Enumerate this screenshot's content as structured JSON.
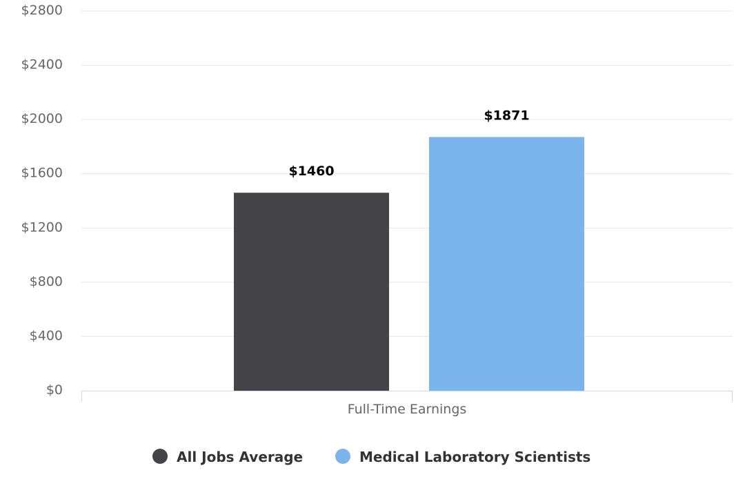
{
  "chart_data": {
    "type": "bar",
    "title": "",
    "xlabel": "",
    "ylabel": "",
    "categories": [
      "Full-Time Earnings"
    ],
    "ylim": [
      0,
      2800
    ],
    "yticks": [
      0,
      400,
      800,
      1200,
      1600,
      2000,
      2400,
      2800
    ],
    "ytick_labels": [
      "$0",
      "$400",
      "$800",
      "$1200",
      "$1600",
      "$2000",
      "$2400",
      "$2800"
    ],
    "grid": true,
    "legend_position": "bottom-center",
    "series": [
      {
        "name": "All Jobs Average",
        "values": [
          1460
        ],
        "data_labels": [
          "$1460"
        ],
        "color": "#434348"
      },
      {
        "name": "Medical Laboratory Scientists",
        "values": [
          1871
        ],
        "data_labels": [
          "$1871"
        ],
        "color": "#7cb5ec"
      }
    ]
  }
}
